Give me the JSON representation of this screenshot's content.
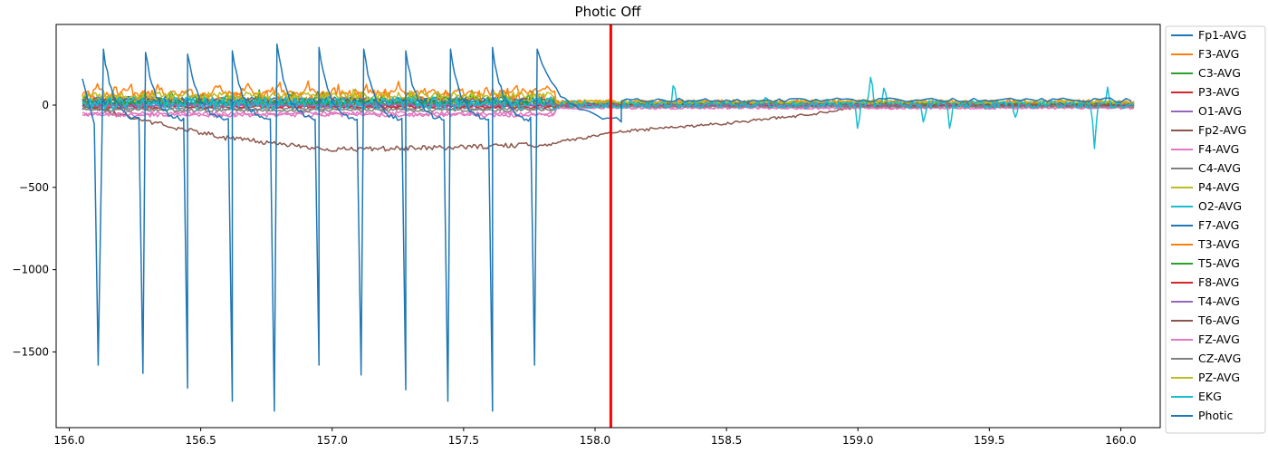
{
  "chart_data": {
    "type": "line",
    "title": "Photic Off",
    "xlabel": "",
    "ylabel": "",
    "xlim": [
      155.95,
      160.15
    ],
    "ylim": [
      -1960,
      490
    ],
    "xticks": [
      156.0,
      156.5,
      157.0,
      157.5,
      158.0,
      158.5,
      159.0,
      159.5,
      160.0
    ],
    "xtick_labels": [
      "156.0",
      "156.5",
      "157.0",
      "157.5",
      "158.0",
      "158.5",
      "159.0",
      "159.5",
      "160.0"
    ],
    "yticks": [
      0,
      -500,
      -1000,
      -1500
    ],
    "ytick_labels": [
      "0",
      "−500",
      "−1000",
      "−1500"
    ],
    "grid": false,
    "legend_position": "outside-right",
    "x_start": 156.05,
    "x_end": 160.05,
    "marker_line": {
      "x": 158.06,
      "color": "#ff0000"
    },
    "series": [
      {
        "name": "Fp1-AVG",
        "color": "#1f77b4",
        "offset": 40,
        "amp": 12
      },
      {
        "name": "F3-AVG",
        "color": "#ff7f0e",
        "offset": 30,
        "amp": 30
      },
      {
        "name": "C3-AVG",
        "color": "#2ca02c",
        "offset": 20,
        "amp": 25
      },
      {
        "name": "P3-AVG",
        "color": "#d62728",
        "offset": 5,
        "amp": 12
      },
      {
        "name": "O1-AVG",
        "color": "#9467bd",
        "offset": -5,
        "amp": 10
      },
      {
        "name": "Fp2-AVG",
        "color": "#8c564b",
        "offset": 30,
        "amp": 10
      },
      {
        "name": "F4-AVG",
        "color": "#e377c2",
        "offset": -50,
        "amp": 12
      },
      {
        "name": "C4-AVG",
        "color": "#7f7f7f",
        "offset": -20,
        "amp": 10
      },
      {
        "name": "P4-AVG",
        "color": "#bcbd22",
        "offset": 15,
        "amp": 25
      },
      {
        "name": "O2-AVG",
        "color": "#17becf",
        "offset": 10,
        "amp": 15
      },
      {
        "name": "F7-AVG",
        "color": "#1f77b4",
        "offset": 20,
        "amp": 15
      },
      {
        "name": "T3-AVG",
        "color": "#ff7f0e",
        "offset": 70,
        "amp": 20
      },
      {
        "name": "T5-AVG",
        "color": "#2ca02c",
        "offset": 10,
        "amp": 12
      },
      {
        "name": "F8-AVG",
        "color": "#d62728",
        "offset": -10,
        "amp": 10
      },
      {
        "name": "T4-AVG",
        "color": "#9467bd",
        "offset": 0,
        "amp": 10
      },
      {
        "name": "T6-AVG",
        "color": "#8c564b",
        "offset": 0,
        "amp": 15
      },
      {
        "name": "FZ-AVG",
        "color": "#e377c2",
        "offset": -60,
        "amp": 12
      },
      {
        "name": "CZ-AVG",
        "color": "#7f7f7f",
        "offset": -30,
        "amp": 10
      },
      {
        "name": "PZ-AVG",
        "color": "#bcbd22",
        "offset": 60,
        "amp": 20
      },
      {
        "name": "EKG",
        "color": "#17becf",
        "offset": 10,
        "amp": 40
      },
      {
        "name": "Photic",
        "color": "#1f77b4",
        "offset": 0,
        "amp": 0
      }
    ],
    "drift_series": {
      "name": "T6-AVG",
      "points": [
        [
          156.05,
          0
        ],
        [
          156.3,
          -100
        ],
        [
          156.6,
          -200
        ],
        [
          157.0,
          -270
        ],
        [
          157.4,
          -260
        ],
        [
          157.8,
          -240
        ],
        [
          158.1,
          -160
        ],
        [
          158.5,
          -110
        ],
        [
          158.8,
          -60
        ],
        [
          159.0,
          -10
        ],
        [
          160.05,
          0
        ]
      ]
    },
    "ekg_events": [
      [
        158.3,
        160
      ],
      [
        158.65,
        60
      ],
      [
        159.0,
        -170
      ],
      [
        159.05,
        200
      ],
      [
        159.1,
        120
      ],
      [
        159.25,
        -120
      ],
      [
        159.35,
        -160
      ],
      [
        159.6,
        -80
      ],
      [
        159.9,
        -270
      ],
      [
        159.95,
        110
      ]
    ],
    "photic_events": {
      "baseline": -100,
      "peaks": [
        [
          156.13,
          340
        ],
        [
          156.29,
          320
        ],
        [
          156.45,
          310
        ],
        [
          156.62,
          330
        ],
        [
          156.79,
          370
        ],
        [
          156.95,
          350
        ],
        [
          157.12,
          340
        ],
        [
          157.28,
          330
        ],
        [
          157.45,
          340
        ],
        [
          157.61,
          350
        ],
        [
          157.78,
          340
        ]
      ],
      "troughs": [
        [
          156.11,
          -1580
        ],
        [
          156.28,
          -1630
        ],
        [
          156.45,
          -1720
        ],
        [
          156.62,
          -1800
        ],
        [
          156.78,
          -1860
        ],
        [
          156.95,
          -1580
        ],
        [
          157.11,
          -1640
        ],
        [
          157.28,
          -1730
        ],
        [
          157.44,
          -1800
        ],
        [
          157.61,
          -1860
        ],
        [
          157.77,
          -1580
        ]
      ]
    }
  }
}
